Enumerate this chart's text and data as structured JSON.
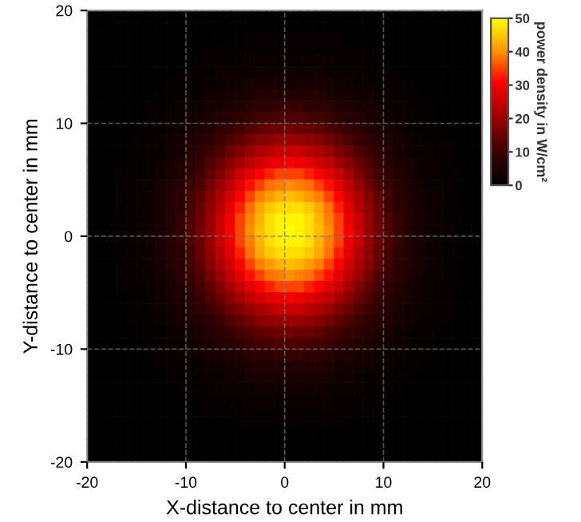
{
  "chart_data": {
    "type": "heatmap",
    "xlabel": "X-distance to center in mm",
    "ylabel": "Y-distance to center in mm",
    "clabel": "power density in W/cm²",
    "xlim": [
      -20,
      20
    ],
    "ylim": [
      -20,
      20
    ],
    "xticks": [
      -20,
      -10,
      0,
      10,
      20
    ],
    "yticks": [
      -20,
      -10,
      0,
      10,
      20
    ],
    "clim": [
      0,
      50
    ],
    "cticks": [
      0,
      10,
      20,
      30,
      40,
      50
    ],
    "grid": true,
    "line_style": "dashed",
    "x": [
      -19.5,
      -18.5,
      -17.5,
      -16.5,
      -15.5,
      -14.5,
      -13.5,
      -12.5,
      -11.5,
      -10.5,
      -9.5,
      -8.5,
      -7.5,
      -6.5,
      -5.5,
      -4.5,
      -3.5,
      -2.5,
      -1.5,
      -0.5,
      0.5,
      1.5,
      2.5,
      3.5,
      4.5,
      5.5,
      6.5,
      7.5,
      8.5,
      9.5,
      10.5,
      11.5,
      12.5,
      13.5,
      14.5,
      15.5,
      16.5,
      17.5,
      18.5,
      19.5
    ],
    "y": [
      19.5,
      18.5,
      17.5,
      16.5,
      15.5,
      14.5,
      13.5,
      12.5,
      11.5,
      10.5,
      9.5,
      8.5,
      7.5,
      6.5,
      5.5,
      4.5,
      3.5,
      2.5,
      1.5,
      0.5,
      -0.5,
      -1.5,
      -2.5,
      -3.5,
      -4.5,
      -5.5,
      -6.5,
      -7.5,
      -8.5,
      -9.5,
      -10.5,
      -11.5,
      -12.5,
      -13.5,
      -14.5,
      -15.5,
      -16.5,
      -17.5,
      -18.5,
      -19.5
    ],
    "cells": [
      [
        0,
        0,
        0,
        0,
        0,
        0,
        0,
        0,
        0,
        0,
        0,
        0,
        0,
        0,
        0,
        0,
        0,
        0,
        0,
        0,
        0,
        0,
        0,
        0,
        0,
        0,
        0,
        0,
        0,
        0,
        0,
        0,
        0,
        0,
        0,
        0,
        0,
        0,
        0,
        0
      ],
      [
        0,
        0,
        0,
        0,
        0,
        0,
        0,
        0,
        0,
        0,
        0,
        0,
        0,
        0,
        0,
        0,
        0,
        0,
        0,
        0,
        0,
        0,
        0,
        0,
        0,
        0,
        0,
        0,
        0,
        0,
        0,
        0,
        0,
        0,
        0,
        0,
        0,
        0,
        0,
        0
      ],
      [
        0,
        0,
        0,
        0,
        0,
        0,
        0,
        0,
        0,
        0,
        0,
        0,
        0,
        0,
        0,
        1,
        1,
        1,
        1,
        1,
        1,
        1,
        1,
        1,
        1,
        1,
        0,
        0,
        0,
        0,
        0,
        0,
        0,
        0,
        0,
        0,
        0,
        0,
        0,
        0
      ],
      [
        0,
        0,
        0,
        0,
        0,
        0,
        0,
        0,
        0,
        0,
        0,
        0,
        1,
        1,
        1,
        1,
        1,
        1,
        1,
        1,
        1,
        1,
        1,
        1,
        1,
        1,
        1,
        1,
        1,
        0,
        0,
        0,
        0,
        0,
        0,
        0,
        0,
        0,
        0,
        0
      ],
      [
        0,
        0,
        0,
        0,
        0,
        0,
        0,
        0,
        0,
        0,
        0,
        1,
        1,
        1,
        1,
        1,
        2,
        2,
        2,
        2,
        2,
        2,
        2,
        2,
        2,
        1,
        1,
        1,
        1,
        1,
        0,
        0,
        0,
        0,
        0,
        0,
        0,
        0,
        0,
        0
      ],
      [
        0,
        0,
        0,
        0,
        0,
        0,
        0,
        0,
        0,
        1,
        1,
        1,
        1,
        2,
        2,
        2,
        2,
        3,
        3,
        3,
        3,
        3,
        3,
        3,
        2,
        2,
        2,
        2,
        1,
        1,
        1,
        1,
        0,
        0,
        0,
        0,
        0,
        0,
        0,
        0
      ],
      [
        0,
        0,
        0,
        0,
        0,
        0,
        0,
        0,
        1,
        1,
        1,
        1,
        2,
        2,
        3,
        3,
        4,
        4,
        4,
        4,
        4,
        4,
        4,
        4,
        4,
        3,
        3,
        2,
        2,
        1,
        1,
        1,
        1,
        0,
        0,
        0,
        0,
        0,
        0,
        0
      ],
      [
        0,
        0,
        0,
        0,
        0,
        0,
        0,
        1,
        1,
        1,
        2,
        2,
        3,
        3,
        4,
        4,
        5,
        6,
        6,
        6,
        6,
        6,
        6,
        6,
        5,
        4,
        4,
        3,
        3,
        2,
        2,
        1,
        1,
        1,
        0,
        0,
        0,
        0,
        0,
        0
      ],
      [
        0,
        0,
        0,
        0,
        0,
        0,
        1,
        1,
        1,
        2,
        2,
        3,
        4,
        4,
        5,
        6,
        7,
        8,
        8,
        9,
        9,
        9,
        8,
        8,
        7,
        6,
        5,
        4,
        4,
        3,
        2,
        2,
        1,
        1,
        1,
        0,
        0,
        0,
        0,
        0
      ],
      [
        0,
        0,
        0,
        0,
        0,
        0,
        1,
        1,
        2,
        2,
        3,
        4,
        5,
        6,
        7,
        8,
        10,
        11,
        11,
        12,
        12,
        12,
        11,
        11,
        10,
        8,
        7,
        6,
        5,
        4,
        3,
        2,
        2,
        1,
        1,
        0,
        0,
        0,
        0,
        0
      ],
      [
        0,
        0,
        0,
        0,
        0,
        1,
        1,
        1,
        2,
        3,
        4,
        5,
        6,
        8,
        9,
        11,
        12,
        14,
        15,
        15,
        16,
        15,
        15,
        14,
        12,
        11,
        9,
        8,
        6,
        5,
        4,
        3,
        2,
        1,
        1,
        1,
        0,
        0,
        0,
        0
      ],
      [
        0,
        0,
        0,
        0,
        1,
        1,
        1,
        2,
        3,
        4,
        5,
        6,
        8,
        10,
        12,
        14,
        16,
        18,
        19,
        20,
        20,
        20,
        19,
        18,
        16,
        14,
        12,
        10,
        8,
        6,
        5,
        4,
        3,
        2,
        1,
        1,
        1,
        0,
        0,
        0
      ],
      [
        0,
        0,
        0,
        0,
        1,
        1,
        2,
        2,
        3,
        4,
        6,
        8,
        10,
        12,
        15,
        17,
        20,
        22,
        23,
        25,
        25,
        25,
        23,
        22,
        20,
        17,
        15,
        12,
        10,
        8,
        6,
        4,
        3,
        2,
        2,
        1,
        1,
        0,
        0,
        0
      ],
      [
        0,
        0,
        0,
        0,
        1,
        1,
        2,
        3,
        4,
        5,
        7,
        9,
        12,
        15,
        18,
        21,
        24,
        26,
        28,
        29,
        30,
        29,
        28,
        26,
        24,
        21,
        18,
        15,
        12,
        9,
        7,
        5,
        4,
        3,
        2,
        1,
        1,
        0,
        0,
        0
      ],
      [
        0,
        0,
        0,
        1,
        1,
        1,
        2,
        3,
        4,
        6,
        8,
        11,
        14,
        17,
        21,
        25,
        28,
        31,
        33,
        35,
        35,
        35,
        33,
        31,
        28,
        25,
        21,
        17,
        14,
        11,
        8,
        6,
        4,
        3,
        2,
        1,
        1,
        1,
        0,
        0
      ],
      [
        0,
        0,
        0,
        1,
        1,
        2,
        2,
        4,
        5,
        7,
        10,
        12,
        16,
        20,
        24,
        28,
        32,
        35,
        38,
        39,
        40,
        39,
        38,
        35,
        32,
        28,
        24,
        20,
        16,
        12,
        10,
        7,
        5,
        4,
        2,
        2,
        1,
        1,
        0,
        0
      ],
      [
        0,
        0,
        0,
        1,
        1,
        2,
        3,
        4,
        6,
        8,
        11,
        14,
        18,
        22,
        26,
        31,
        35,
        39,
        41,
        43,
        44,
        43,
        41,
        39,
        35,
        31,
        26,
        22,
        18,
        14,
        11,
        8,
        6,
        4,
        3,
        2,
        1,
        1,
        0,
        0
      ],
      [
        0,
        0,
        0,
        1,
        1,
        2,
        3,
        4,
        6,
        8,
        11,
        15,
        19,
        23,
        28,
        33,
        38,
        42,
        45,
        47,
        47,
        47,
        45,
        42,
        38,
        33,
        28,
        23,
        19,
        15,
        11,
        8,
        6,
        4,
        3,
        2,
        1,
        1,
        0,
        0
      ],
      [
        0,
        0,
        0,
        1,
        1,
        2,
        3,
        4,
        6,
        9,
        12,
        15,
        20,
        25,
        29,
        35,
        39,
        43,
        47,
        49,
        49,
        49,
        47,
        43,
        39,
        35,
        29,
        25,
        20,
        15,
        12,
        9,
        6,
        4,
        3,
        2,
        1,
        1,
        0,
        0
      ],
      [
        0,
        0,
        0,
        1,
        1,
        2,
        3,
        4,
        6,
        9,
        12,
        16,
        20,
        25,
        30,
        35,
        40,
        44,
        47,
        49,
        50,
        49,
        47,
        44,
        40,
        35,
        30,
        25,
        20,
        16,
        12,
        9,
        6,
        4,
        3,
        2,
        1,
        1,
        0,
        0
      ],
      [
        0,
        0,
        0,
        1,
        1,
        2,
        3,
        4,
        6,
        9,
        12,
        15,
        20,
        25,
        29,
        35,
        39,
        43,
        47,
        49,
        49,
        49,
        47,
        43,
        39,
        35,
        29,
        25,
        20,
        15,
        12,
        9,
        6,
        4,
        3,
        2,
        1,
        1,
        0,
        0
      ],
      [
        0,
        0,
        0,
        1,
        1,
        2,
        3,
        4,
        6,
        8,
        11,
        15,
        19,
        23,
        28,
        33,
        38,
        42,
        45,
        47,
        47,
        47,
        45,
        42,
        38,
        33,
        28,
        23,
        19,
        15,
        11,
        8,
        6,
        4,
        3,
        2,
        1,
        1,
        0,
        0
      ],
      [
        0,
        0,
        0,
        1,
        1,
        2,
        3,
        4,
        6,
        8,
        11,
        14,
        18,
        22,
        26,
        31,
        35,
        39,
        41,
        43,
        44,
        43,
        41,
        39,
        35,
        31,
        26,
        22,
        18,
        14,
        11,
        8,
        6,
        4,
        3,
        2,
        1,
        1,
        0,
        0
      ],
      [
        0,
        0,
        0,
        1,
        1,
        2,
        2,
        4,
        5,
        7,
        10,
        12,
        16,
        20,
        24,
        28,
        32,
        35,
        38,
        39,
        40,
        39,
        38,
        35,
        32,
        28,
        24,
        20,
        16,
        12,
        10,
        7,
        5,
        4,
        2,
        2,
        1,
        1,
        0,
        0
      ],
      [
        0,
        0,
        0,
        1,
        1,
        1,
        2,
        3,
        4,
        6,
        8,
        11,
        14,
        17,
        21,
        25,
        28,
        31,
        33,
        35,
        35,
        35,
        33,
        31,
        28,
        25,
        21,
        17,
        14,
        11,
        8,
        6,
        4,
        3,
        2,
        1,
        1,
        1,
        0,
        0
      ],
      [
        0,
        0,
        0,
        0,
        1,
        1,
        2,
        3,
        4,
        5,
        7,
        9,
        12,
        15,
        18,
        21,
        24,
        26,
        28,
        29,
        30,
        29,
        28,
        26,
        24,
        21,
        18,
        15,
        12,
        9,
        7,
        5,
        4,
        3,
        2,
        1,
        1,
        0,
        0,
        0
      ],
      [
        0,
        0,
        0,
        0,
        1,
        1,
        2,
        2,
        3,
        4,
        6,
        8,
        10,
        12,
        15,
        17,
        20,
        22,
        23,
        25,
        25,
        25,
        23,
        22,
        20,
        17,
        15,
        12,
        10,
        8,
        6,
        4,
        3,
        2,
        2,
        1,
        1,
        0,
        0,
        0
      ],
      [
        0,
        0,
        0,
        0,
        1,
        1,
        1,
        2,
        3,
        4,
        5,
        6,
        8,
        10,
        12,
        14,
        16,
        18,
        19,
        20,
        20,
        20,
        19,
        18,
        16,
        14,
        12,
        10,
        8,
        6,
        5,
        4,
        3,
        2,
        1,
        1,
        1,
        0,
        0,
        0
      ],
      [
        0,
        0,
        0,
        0,
        0,
        1,
        1,
        1,
        2,
        3,
        4,
        5,
        6,
        8,
        9,
        11,
        12,
        14,
        15,
        15,
        16,
        15,
        15,
        14,
        12,
        11,
        9,
        8,
        6,
        5,
        4,
        3,
        2,
        1,
        1,
        1,
        0,
        0,
        0,
        0
      ],
      [
        0,
        0,
        0,
        0,
        0,
        0,
        1,
        1,
        2,
        2,
        3,
        4,
        5,
        6,
        7,
        8,
        10,
        11,
        11,
        12,
        12,
        12,
        11,
        11,
        10,
        8,
        7,
        6,
        5,
        4,
        3,
        2,
        2,
        1,
        1,
        0,
        0,
        0,
        0,
        0
      ],
      [
        0,
        0,
        0,
        0,
        0,
        0,
        1,
        1,
        1,
        2,
        2,
        3,
        4,
        4,
        5,
        6,
        7,
        8,
        8,
        9,
        9,
        9,
        8,
        8,
        7,
        6,
        5,
        4,
        4,
        3,
        2,
        2,
        1,
        1,
        1,
        0,
        0,
        0,
        0,
        0
      ],
      [
        0,
        0,
        0,
        0,
        0,
        0,
        0,
        1,
        1,
        1,
        2,
        2,
        3,
        3,
        4,
        4,
        5,
        6,
        6,
        6,
        6,
        6,
        6,
        6,
        5,
        4,
        4,
        3,
        3,
        2,
        2,
        1,
        1,
        1,
        0,
        0,
        0,
        0,
        0,
        0
      ],
      [
        0,
        0,
        0,
        0,
        0,
        0,
        0,
        0,
        1,
        1,
        1,
        1,
        2,
        2,
        3,
        3,
        4,
        4,
        4,
        4,
        4,
        4,
        4,
        4,
        4,
        3,
        3,
        2,
        2,
        1,
        1,
        1,
        1,
        0,
        0,
        0,
        0,
        0,
        0,
        0
      ],
      [
        0,
        0,
        0,
        0,
        0,
        0,
        0,
        0,
        0,
        1,
        1,
        1,
        1,
        2,
        2,
        2,
        2,
        3,
        3,
        3,
        3,
        3,
        3,
        3,
        2,
        2,
        2,
        2,
        1,
        1,
        1,
        1,
        0,
        0,
        0,
        0,
        0,
        0,
        0,
        0
      ],
      [
        0,
        0,
        0,
        0,
        0,
        0,
        0,
        0,
        0,
        0,
        0,
        1,
        1,
        1,
        1,
        1,
        2,
        2,
        2,
        2,
        2,
        2,
        2,
        2,
        2,
        1,
        1,
        1,
        1,
        1,
        0,
        0,
        0,
        0,
        0,
        0,
        0,
        0,
        0,
        0
      ],
      [
        0,
        0,
        0,
        0,
        0,
        0,
        0,
        0,
        0,
        0,
        0,
        0,
        1,
        1,
        1,
        1,
        1,
        1,
        1,
        1,
        1,
        1,
        1,
        1,
        1,
        1,
        1,
        1,
        1,
        0,
        0,
        0,
        0,
        0,
        0,
        0,
        0,
        0,
        0,
        0
      ],
      [
        0,
        0,
        0,
        0,
        0,
        0,
        0,
        0,
        0,
        0,
        0,
        0,
        0,
        0,
        0,
        1,
        1,
        1,
        1,
        1,
        1,
        1,
        1,
        1,
        1,
        1,
        0,
        0,
        0,
        0,
        0,
        0,
        0,
        0,
        0,
        0,
        0,
        0,
        0,
        0
      ],
      [
        0,
        0,
        0,
        0,
        0,
        0,
        0,
        0,
        0,
        0,
        0,
        0,
        0,
        0,
        0,
        0,
        0,
        0,
        0,
        0,
        0,
        0,
        0,
        0,
        0,
        0,
        0,
        0,
        0,
        0,
        0,
        0,
        0,
        0,
        0,
        0,
        0,
        0,
        0,
        0
      ],
      [
        0,
        0,
        0,
        0,
        0,
        0,
        0,
        0,
        0,
        0,
        0,
        0,
        0,
        0,
        0,
        0,
        0,
        0,
        0,
        0,
        0,
        0,
        0,
        0,
        0,
        0,
        0,
        0,
        0,
        0,
        0,
        0,
        0,
        0,
        0,
        0,
        0,
        0,
        0,
        0
      ],
      [
        0,
        0,
        0,
        0,
        0,
        0,
        0,
        0,
        0,
        0,
        0,
        0,
        0,
        0,
        0,
        0,
        0,
        0,
        0,
        0,
        0,
        0,
        0,
        0,
        0,
        0,
        0,
        0,
        0,
        0,
        0,
        0,
        0,
        0,
        0,
        0,
        0,
        0,
        0,
        0
      ]
    ]
  }
}
